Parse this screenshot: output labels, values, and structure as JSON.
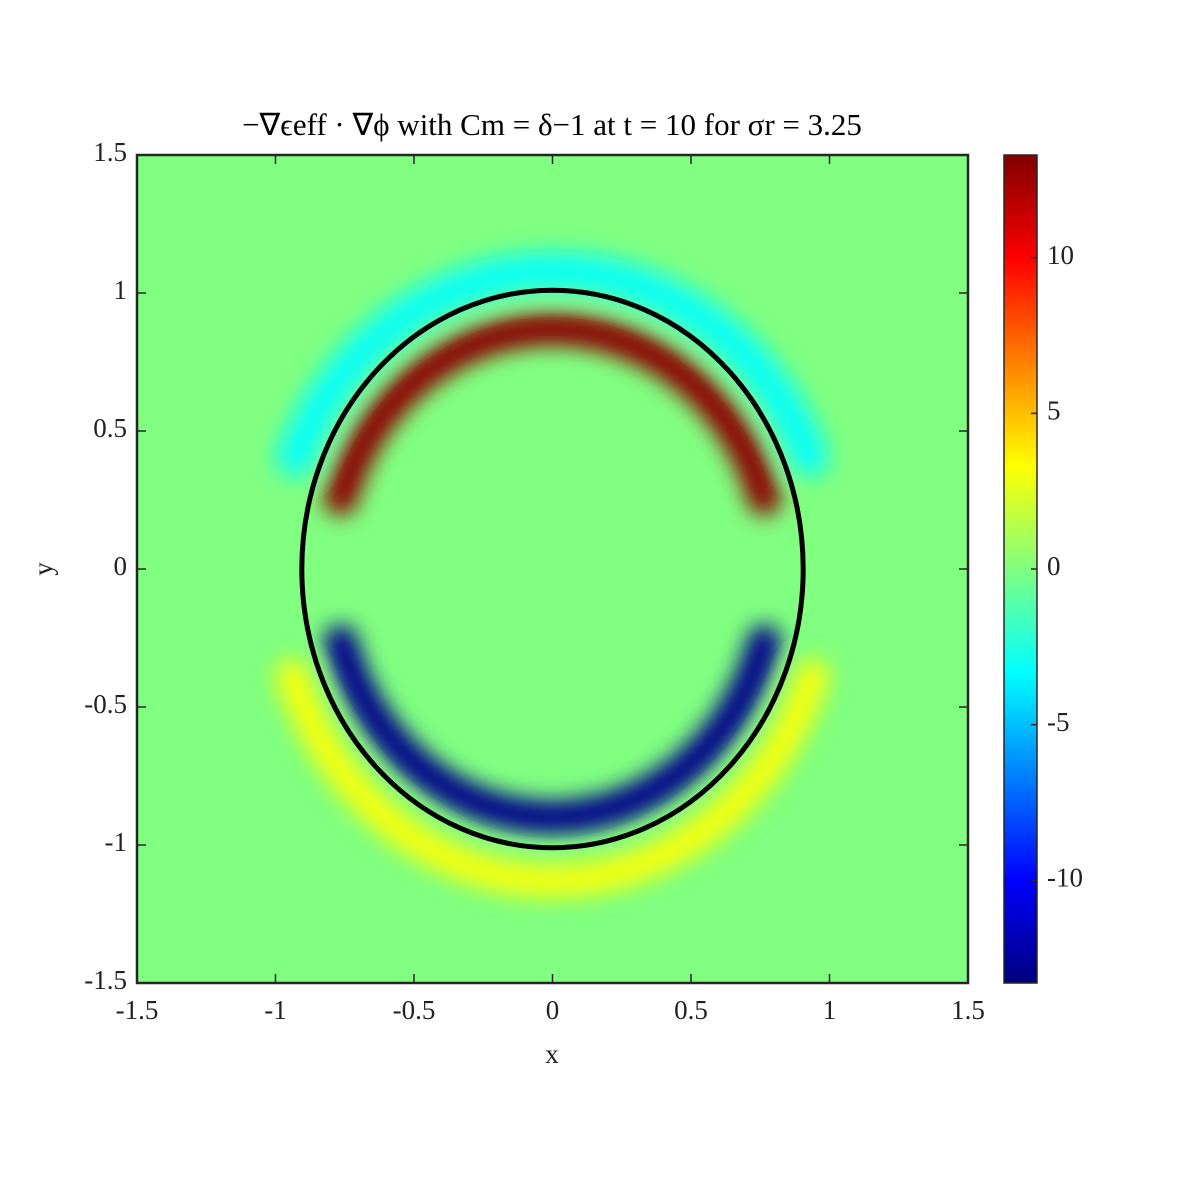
{
  "chart_data": {
    "type": "heatmap",
    "title": "−∇ϵeff · ∇ϕ with Cm = δ−1 at t = 10 for σr = 3.25",
    "x_label": "x",
    "y_label": "y",
    "xlim": [
      -1.5,
      1.5
    ],
    "ylim": [
      -1.5,
      1.5
    ],
    "xticks": [
      -1.5,
      -1,
      -0.5,
      0,
      0.5,
      1,
      1.5
    ],
    "yticks": [
      -1.5,
      -1,
      -0.5,
      0,
      0.5,
      1,
      1.5
    ],
    "colormap": "jet",
    "clim": [
      -13.3,
      13.3
    ],
    "cticks": [
      -10,
      -5,
      0,
      5,
      10
    ],
    "background_value": 0,
    "bands": [
      {
        "value": -3,
        "rx": 1.0,
        "ry": 1.08,
        "start_angle": 22,
        "end_angle": 158,
        "width": 0.14
      },
      {
        "value": 3,
        "rx": 1.0,
        "ry": 1.13,
        "start_angle": 200,
        "end_angle": 340,
        "width": 0.12
      },
      {
        "value": 13,
        "rx": 0.8,
        "ry": 0.87,
        "start_angle": 17,
        "end_angle": 163,
        "width": 0.12
      },
      {
        "value": -13,
        "rx": 0.8,
        "ry": 0.9,
        "start_angle": 197,
        "end_angle": 343,
        "width": 0.12
      }
    ],
    "ellipse": {
      "cx": 0,
      "cy": 0,
      "rx": 0.905,
      "ry": 1.01,
      "color": "#000000"
    }
  }
}
